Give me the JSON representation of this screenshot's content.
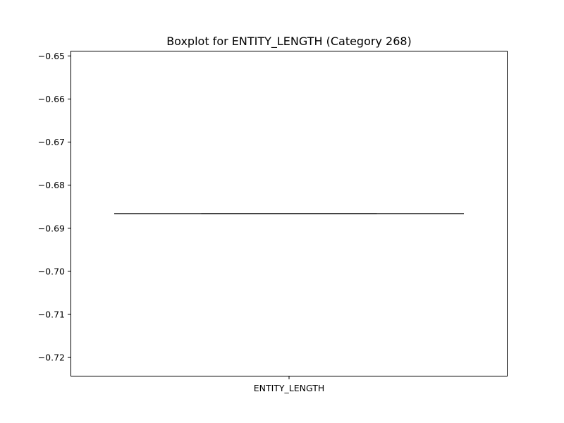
{
  "chart_data": {
    "type": "box",
    "title": "Boxplot for ENTITY_LENGTH (Category 268)",
    "xlabel": "",
    "ylabel": "",
    "categories": [
      "ENTITY_LENGTH"
    ],
    "series": [
      {
        "category": "ENTITY_LENGTH",
        "min": -0.6866,
        "q1": -0.6866,
        "median": -0.6866,
        "q3": -0.6866,
        "max": -0.6866,
        "outliers": []
      }
    ],
    "ylim": [
      -0.7244,
      -0.6488
    ],
    "yticks": [
      -0.65,
      -0.66,
      -0.67,
      -0.68,
      -0.69,
      -0.7,
      -0.71,
      -0.72
    ],
    "ytick_labels": [
      "−0.65",
      "−0.66",
      "−0.67",
      "−0.68",
      "−0.69",
      "−0.70",
      "−0.71",
      "−0.72"
    ],
    "grid": false,
    "colors": {
      "axes": "#000000",
      "box_line": "#3f3f3f",
      "background": "#ffffff"
    }
  }
}
